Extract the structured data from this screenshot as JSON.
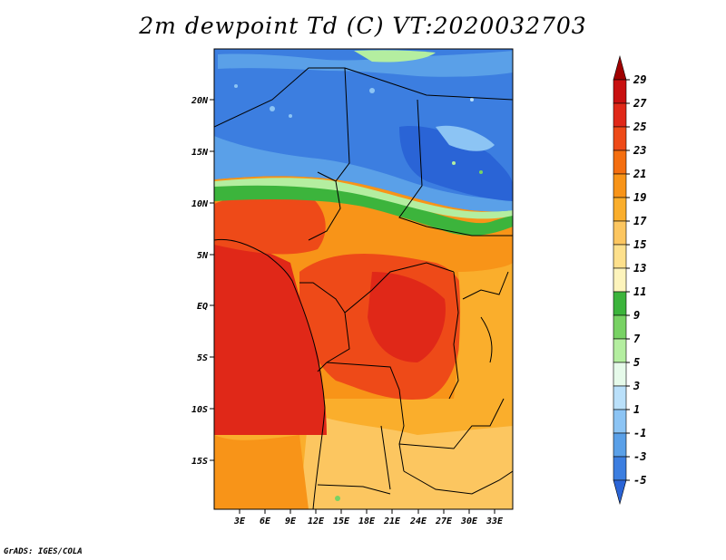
{
  "title": "2m dewpoint Td (C) VT:2020032703",
  "credit": "GrADS: IGES/COLA",
  "lat_labels": [
    "20N",
    "15N",
    "10N",
    "5N",
    "EQ",
    "5S",
    "10S",
    "15S"
  ],
  "lon_labels": [
    "3E",
    "6E",
    "9E",
    "12E",
    "15E",
    "18E",
    "21E",
    "24E",
    "27E",
    "30E",
    "33E"
  ],
  "colorbar": {
    "labels": [
      "29",
      "27",
      "25",
      "23",
      "21",
      "19",
      "17",
      "15",
      "13",
      "11",
      "9",
      "7",
      "5",
      "3",
      "1",
      "-1",
      "-3",
      "-5"
    ],
    "colors": [
      "#a00000",
      "#c81010",
      "#e02818",
      "#ee4a18",
      "#f46e10",
      "#f89418",
      "#faae2c",
      "#fcc660",
      "#fde08c",
      "#fdf4bc",
      "#3cb43c",
      "#78d264",
      "#b4eea0",
      "#e6faea",
      "#bae0fa",
      "#8cc4f4",
      "#5aa0e8",
      "#3c7ee0",
      "#2a64d6"
    ]
  }
}
